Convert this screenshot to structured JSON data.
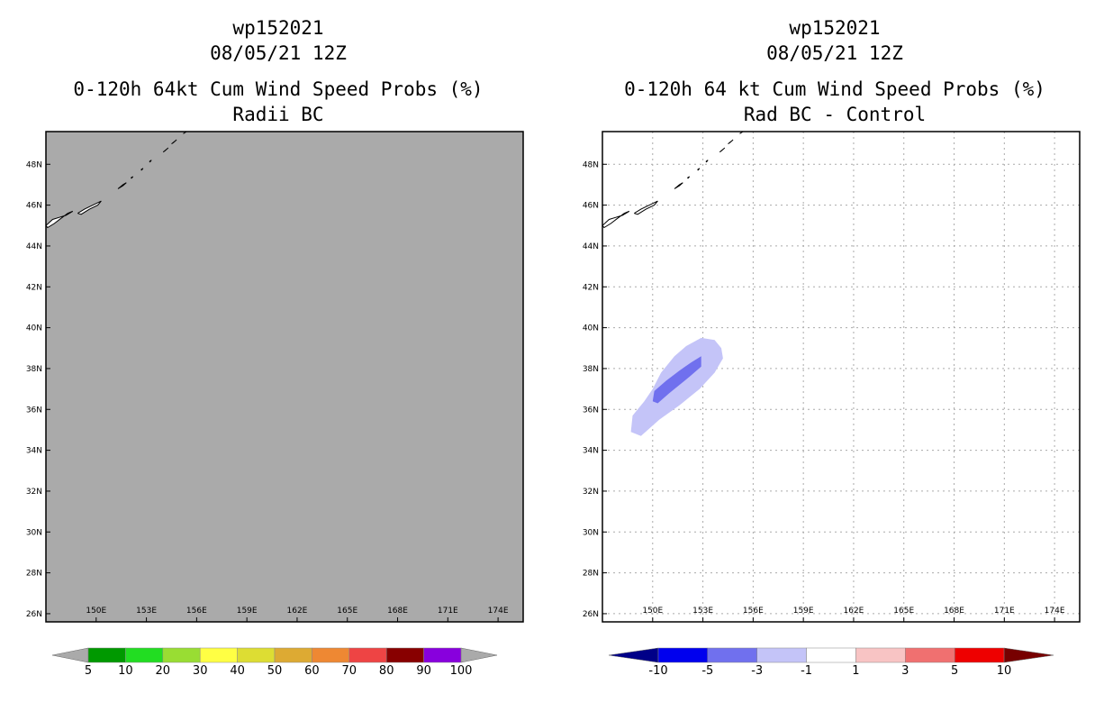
{
  "panels": [
    {
      "id": "left",
      "title_lines": [
        "wp152021",
        "08/05/21 12Z",
        "0-120h 64kt Cum Wind Speed Probs (%)",
        "Radii BC"
      ]
    },
    {
      "id": "right",
      "title_lines": [
        "wp152021",
        "08/05/21 12Z",
        "0-120h 64 kt Cum Wind Speed Probs (%)",
        "Rad BC - Control"
      ]
    }
  ],
  "chart_data": [
    {
      "type": "heatmap",
      "title": "0-120h 64kt Cum Wind Speed Probs (%)",
      "subtitle": "Radii BC",
      "storm": "wp152021",
      "datetime": "08/05/21 12Z",
      "xlim": [
        147.0,
        175.5
      ],
      "ylim": [
        25.6,
        49.6
      ],
      "x_ticks": [
        150,
        153,
        156,
        159,
        162,
        165,
        168,
        171,
        174
      ],
      "x_tick_labels": [
        "150E",
        "153E",
        "156E",
        "159E",
        "162E",
        "165E",
        "168E",
        "171E",
        "174E"
      ],
      "y_ticks": [
        26,
        28,
        30,
        32,
        34,
        36,
        38,
        40,
        42,
        44,
        46,
        48
      ],
      "y_tick_labels": [
        "26N",
        "28N",
        "30N",
        "32N",
        "34N",
        "36N",
        "38N",
        "40N",
        "42N",
        "44N",
        "46N",
        "48N"
      ],
      "field": "no data (uniform gray)",
      "background_color": "#aaaaaa",
      "grid": false,
      "colorbar": {
        "labels": [
          "5",
          "10",
          "20",
          "30",
          "40",
          "50",
          "60",
          "70",
          "80",
          "90",
          "100"
        ],
        "colors": [
          "#009900",
          "#22dd22",
          "#99dd33",
          "#ffff44",
          "#dddd33",
          "#ddaa33",
          "#ee8833",
          "#ee4444",
          "#880000",
          "#8800dd"
        ],
        "under_color": "#aaaaaa",
        "over_color": "#aaaaaa"
      }
    },
    {
      "type": "heatmap",
      "title": "0-120h 64 kt Cum Wind Speed Probs (%)",
      "subtitle": "Rad BC - Control",
      "storm": "wp152021",
      "datetime": "08/05/21 12Z",
      "xlim": [
        147.0,
        175.5
      ],
      "ylim": [
        25.6,
        49.6
      ],
      "x_ticks": [
        150,
        153,
        156,
        159,
        162,
        165,
        168,
        171,
        174
      ],
      "x_tick_labels": [
        "150E",
        "153E",
        "156E",
        "159E",
        "162E",
        "165E",
        "168E",
        "171E",
        "174E"
      ],
      "y_ticks": [
        26,
        28,
        30,
        32,
        34,
        36,
        38,
        40,
        42,
        44,
        46,
        48
      ],
      "y_tick_labels": [
        "26N",
        "28N",
        "30N",
        "32N",
        "34N",
        "36N",
        "38N",
        "40N",
        "42N",
        "44N",
        "46N",
        "48N"
      ],
      "grid": true,
      "contours": [
        {
          "range": "-3 to -1",
          "color": "#c4c4f8",
          "lonlat": [
            [
              148.7,
              34.9
            ],
            [
              148.8,
              35.7
            ],
            [
              149.5,
              36.4
            ],
            [
              150.0,
              37.0
            ],
            [
              150.5,
              37.8
            ],
            [
              151.3,
              38.6
            ],
            [
              152.0,
              39.1
            ],
            [
              152.9,
              39.5
            ],
            [
              153.7,
              39.4
            ],
            [
              154.1,
              39.0
            ],
            [
              154.2,
              38.5
            ],
            [
              153.7,
              37.8
            ],
            [
              152.8,
              37.0
            ],
            [
              151.6,
              36.2
            ],
            [
              150.4,
              35.5
            ],
            [
              149.3,
              34.7
            ]
          ]
        },
        {
          "range": "-5 to -3",
          "color": "#7070ee",
          "lonlat": [
            [
              150.0,
              36.4
            ],
            [
              150.1,
              36.9
            ],
            [
              150.8,
              37.4
            ],
            [
              151.6,
              37.9
            ],
            [
              152.3,
              38.3
            ],
            [
              152.9,
              38.6
            ],
            [
              152.9,
              38.1
            ],
            [
              152.2,
              37.6
            ],
            [
              151.6,
              37.2
            ],
            [
              151.0,
              36.8
            ],
            [
              150.3,
              36.3
            ]
          ]
        }
      ],
      "colorbar": {
        "labels": [
          "-10",
          "-5",
          "-3",
          "-1",
          "1",
          "3",
          "5",
          "10"
        ],
        "colors": [
          "#0000ee",
          "#7070ee",
          "#c4c4f8",
          "#ffffff",
          "#f8c4c4",
          "#f07070",
          "#ee0000"
        ],
        "under_color": "#000088",
        "over_color": "#770000"
      }
    }
  ]
}
